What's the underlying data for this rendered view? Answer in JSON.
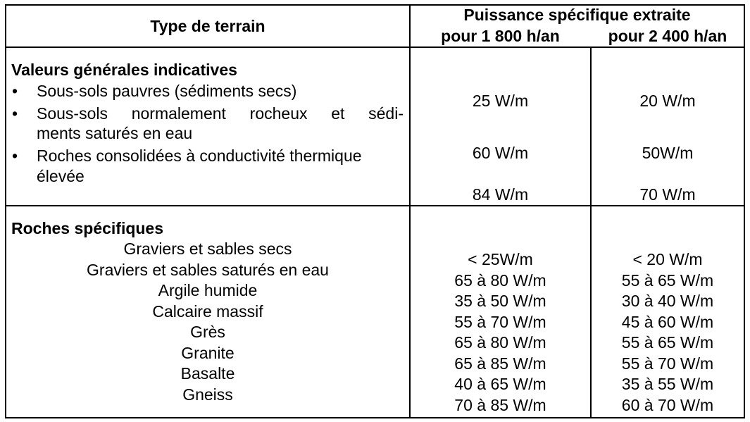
{
  "header": {
    "col1": "Type de terrain",
    "col2_title": "Puissance spécifique extraite",
    "col2_sub1": "pour 1 800 h/an",
    "col2_sub2": "pour 2 400 h/an"
  },
  "section1": {
    "title": "Valeurs générales indicatives",
    "items": [
      {
        "lines": [
          "Sous-sols pauvres (sédiments secs)"
        ],
        "v1800": "25 W/m",
        "v2400": "20 W/m"
      },
      {
        "lines": [
          "Sous-sols normalement rocheux et sédi-",
          "ments saturés en eau"
        ],
        "v1800": "60 W/m",
        "v2400": "50W/m"
      },
      {
        "lines": [
          "Roches consolidées à conductivité thermique",
          "élevée"
        ],
        "v1800": "84 W/m",
        "v2400": "70 W/m"
      }
    ]
  },
  "section2": {
    "title": "Roches spécifiques",
    "rows": [
      {
        "name": "Graviers et sables secs",
        "v1800": "< 25W/m",
        "v2400": "< 20 W/m"
      },
      {
        "name": "Graviers et sables saturés en eau",
        "v1800": "65 à 80 W/m",
        "v2400": "55 à 65 W/m"
      },
      {
        "name": "Argile humide",
        "v1800": "35 à 50 W/m",
        "v2400": "30 à 40 W/m"
      },
      {
        "name": "Calcaire massif",
        "v1800": "55 à 70 W/m",
        "v2400": "45 à 60 W/m"
      },
      {
        "name": "Grès",
        "v1800": "65 à 80 W/m",
        "v2400": "55 à 65 W/m"
      },
      {
        "name": "Granite",
        "v1800": "65 à 85 W/m",
        "v2400": "55 à 70 W/m"
      },
      {
        "name": "Basalte",
        "v1800": "40 à 65 W/m",
        "v2400": "35 à 55 W/m"
      },
      {
        "name": "Gneiss",
        "v1800": "70 à 85 W/m",
        "v2400": "60 à 70 W/m"
      }
    ]
  }
}
